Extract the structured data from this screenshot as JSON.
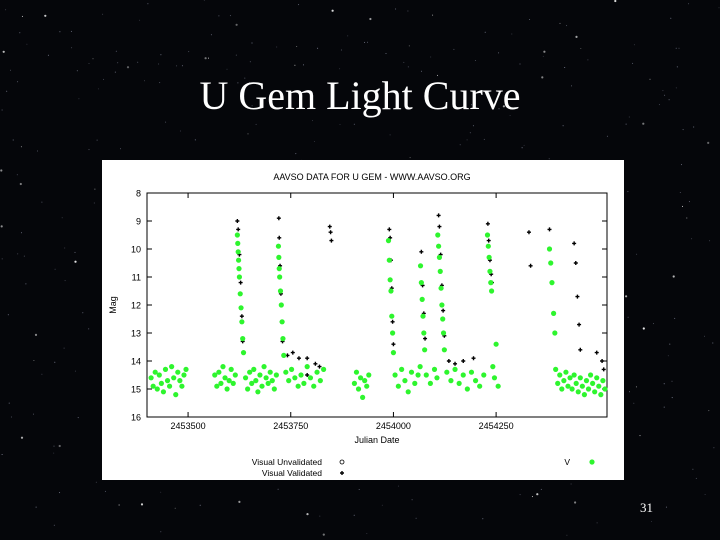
{
  "slide": {
    "title": "U Gem Light Curve",
    "page_number": "31",
    "background_color": "#05060a",
    "title_color": "#ffffff"
  },
  "chart_data": {
    "type": "scatter",
    "title": "AAVSO DATA FOR U GEM - WWW.AAVSO.ORG",
    "xlabel": "Julian Date",
    "ylabel": "Mag",
    "xlim": [
      2453400,
      2454520
    ],
    "ylim": [
      16,
      8
    ],
    "y_inverted": true,
    "x_ticks": [
      {
        "value": 2453500,
        "label": "2453500"
      },
      {
        "value": 2453750,
        "label": "2453750"
      },
      {
        "value": 2454000,
        "label": "2454000"
      },
      {
        "value": 2454250,
        "label": "2454250"
      }
    ],
    "y_ticks": [
      {
        "value": 8,
        "label": "8"
      },
      {
        "value": 9,
        "label": "9"
      },
      {
        "value": 10,
        "label": "10"
      },
      {
        "value": 11,
        "label": "11"
      },
      {
        "value": 12,
        "label": "12"
      },
      {
        "value": 13,
        "label": "13"
      },
      {
        "value": 14,
        "label": "14"
      },
      {
        "value": 15,
        "label": "15"
      },
      {
        "value": 16,
        "label": "16"
      }
    ],
    "grid": false,
    "legend_position": "bottom",
    "series": [
      {
        "name": "Visual Unvalidated",
        "marker": "open-circle",
        "color": "#000000",
        "points": []
      },
      {
        "name": "Visual Validated",
        "marker": "plus",
        "color": "#000000",
        "points": [
          [
            2453620,
            9.0
          ],
          [
            2453622,
            9.3
          ],
          [
            2453625,
            10.2
          ],
          [
            2453628,
            11.2
          ],
          [
            2453631,
            12.4
          ],
          [
            2453633,
            13.3
          ],
          [
            2453721,
            8.9
          ],
          [
            2453722,
            9.6
          ],
          [
            2453724,
            10.6
          ],
          [
            2453726,
            11.6
          ],
          [
            2453728,
            12.6
          ],
          [
            2453730,
            13.3
          ],
          [
            2453742,
            13.8
          ],
          [
            2453755,
            13.7
          ],
          [
            2453770,
            13.9
          ],
          [
            2453790,
            13.9
          ],
          [
            2453810,
            14.1
          ],
          [
            2453820,
            14.2
          ],
          [
            2453790,
            14.5
          ],
          [
            2453845,
            9.2
          ],
          [
            2453847,
            9.4
          ],
          [
            2453849,
            9.7
          ],
          [
            2453990,
            9.3
          ],
          [
            2453992,
            9.6
          ],
          [
            2453994,
            10.4
          ],
          [
            2453996,
            11.4
          ],
          [
            2453998,
            12.6
          ],
          [
            2454000,
            13.4
          ],
          [
            2454068,
            10.1
          ],
          [
            2454071,
            11.3
          ],
          [
            2454074,
            12.3
          ],
          [
            2454077,
            13.2
          ],
          [
            2454110,
            8.8
          ],
          [
            2454112,
            9.2
          ],
          [
            2454115,
            10.2
          ],
          [
            2454118,
            11.3
          ],
          [
            2454121,
            12.2
          ],
          [
            2454124,
            13.1
          ],
          [
            2454135,
            14.0
          ],
          [
            2454150,
            14.1
          ],
          [
            2454170,
            14.0
          ],
          [
            2454195,
            13.9
          ],
          [
            2454230,
            9.1
          ],
          [
            2454232,
            9.7
          ],
          [
            2454235,
            10.4
          ],
          [
            2454238,
            10.9
          ],
          [
            2454240,
            11.2
          ],
          [
            2454330,
            9.4
          ],
          [
            2454334,
            10.6
          ],
          [
            2454380,
            9.3
          ],
          [
            2454440,
            9.8
          ],
          [
            2454444,
            10.5
          ],
          [
            2454448,
            11.7
          ],
          [
            2454452,
            12.7
          ],
          [
            2454455,
            13.6
          ],
          [
            2454495,
            13.7
          ],
          [
            2454508,
            14.0
          ],
          [
            2454512,
            14.3
          ]
        ]
      },
      {
        "name": "V",
        "marker": "filled-circle",
        "color": "#2ef52e",
        "points": [
          [
            2453410,
            14.6
          ],
          [
            2453415,
            14.9
          ],
          [
            2453420,
            14.4
          ],
          [
            2453425,
            15.0
          ],
          [
            2453430,
            14.5
          ],
          [
            2453435,
            14.8
          ],
          [
            2453440,
            15.1
          ],
          [
            2453445,
            14.3
          ],
          [
            2453450,
            14.7
          ],
          [
            2453455,
            14.9
          ],
          [
            2453460,
            14.2
          ],
          [
            2453465,
            14.6
          ],
          [
            2453470,
            15.2
          ],
          [
            2453475,
            14.4
          ],
          [
            2453480,
            14.7
          ],
          [
            2453485,
            14.9
          ],
          [
            2453490,
            14.5
          ],
          [
            2453495,
            14.3
          ],
          [
            2453565,
            14.5
          ],
          [
            2453570,
            14.9
          ],
          [
            2453575,
            14.4
          ],
          [
            2453580,
            14.8
          ],
          [
            2453585,
            14.2
          ],
          [
            2453590,
            14.6
          ],
          [
            2453595,
            15.0
          ],
          [
            2453600,
            14.7
          ],
          [
            2453605,
            14.3
          ],
          [
            2453610,
            14.8
          ],
          [
            2453615,
            14.5
          ],
          [
            2453620,
            9.5
          ],
          [
            2453621,
            9.8
          ],
          [
            2453622,
            10.1
          ],
          [
            2453623,
            10.4
          ],
          [
            2453624,
            10.7
          ],
          [
            2453625,
            11.0
          ],
          [
            2453627,
            11.6
          ],
          [
            2453629,
            12.1
          ],
          [
            2453631,
            12.6
          ],
          [
            2453633,
            13.2
          ],
          [
            2453635,
            13.7
          ],
          [
            2453640,
            14.6
          ],
          [
            2453645,
            15.0
          ],
          [
            2453650,
            14.4
          ],
          [
            2453655,
            14.8
          ],
          [
            2453660,
            14.3
          ],
          [
            2453665,
            14.7
          ],
          [
            2453670,
            15.1
          ],
          [
            2453675,
            14.5
          ],
          [
            2453680,
            14.9
          ],
          [
            2453685,
            14.2
          ],
          [
            2453690,
            14.6
          ],
          [
            2453695,
            14.8
          ],
          [
            2453700,
            14.4
          ],
          [
            2453705,
            14.7
          ],
          [
            2453710,
            15.0
          ],
          [
            2453715,
            14.5
          ],
          [
            2453720,
            9.9
          ],
          [
            2453721,
            10.3
          ],
          [
            2453722,
            10.7
          ],
          [
            2453723,
            11.0
          ],
          [
            2453725,
            11.5
          ],
          [
            2453727,
            12.0
          ],
          [
            2453729,
            12.6
          ],
          [
            2453731,
            13.2
          ],
          [
            2453733,
            13.8
          ],
          [
            2453738,
            14.4
          ],
          [
            2453745,
            14.7
          ],
          [
            2453752,
            14.3
          ],
          [
            2453760,
            14.6
          ],
          [
            2453768,
            14.9
          ],
          [
            2453775,
            14.5
          ],
          [
            2453782,
            14.8
          ],
          [
            2453790,
            14.2
          ],
          [
            2453798,
            14.6
          ],
          [
            2453806,
            14.9
          ],
          [
            2453814,
            14.4
          ],
          [
            2453822,
            14.7
          ],
          [
            2453830,
            14.3
          ],
          [
            2453905,
            14.8
          ],
          [
            2453910,
            14.4
          ],
          [
            2453915,
            15.0
          ],
          [
            2453920,
            14.6
          ],
          [
            2453925,
            15.3
          ],
          [
            2453930,
            14.7
          ],
          [
            2453935,
            14.9
          ],
          [
            2453940,
            14.5
          ],
          [
            2453988,
            9.7
          ],
          [
            2453990,
            10.4
          ],
          [
            2453992,
            11.1
          ],
          [
            2453994,
            11.5
          ],
          [
            2453996,
            12.4
          ],
          [
            2453998,
            13.0
          ],
          [
            2454000,
            13.7
          ],
          [
            2454004,
            14.5
          ],
          [
            2454012,
            14.9
          ],
          [
            2454020,
            14.3
          ],
          [
            2454028,
            14.7
          ],
          [
            2454036,
            15.1
          ],
          [
            2454044,
            14.4
          ],
          [
            2454052,
            14.8
          ],
          [
            2454060,
            14.5
          ],
          [
            2454065,
            14.2
          ],
          [
            2454066,
            10.6
          ],
          [
            2454068,
            11.2
          ],
          [
            2454070,
            11.8
          ],
          [
            2454072,
            12.4
          ],
          [
            2454074,
            13.0
          ],
          [
            2454076,
            13.6
          ],
          [
            2454080,
            14.5
          ],
          [
            2454090,
            14.8
          ],
          [
            2454100,
            14.3
          ],
          [
            2454106,
            14.6
          ],
          [
            2454108,
            9.5
          ],
          [
            2454110,
            9.9
          ],
          [
            2454112,
            10.3
          ],
          [
            2454114,
            10.8
          ],
          [
            2454116,
            11.4
          ],
          [
            2454118,
            12.0
          ],
          [
            2454120,
            12.5
          ],
          [
            2454122,
            13.0
          ],
          [
            2454124,
            13.6
          ],
          [
            2454130,
            14.4
          ],
          [
            2454140,
            14.7
          ],
          [
            2454150,
            14.3
          ],
          [
            2454160,
            14.8
          ],
          [
            2454170,
            14.5
          ],
          [
            2454180,
            15.0
          ],
          [
            2454190,
            14.4
          ],
          [
            2454200,
            14.7
          ],
          [
            2454210,
            14.9
          ],
          [
            2454220,
            14.5
          ],
          [
            2454229,
            9.5
          ],
          [
            2454231,
            9.9
          ],
          [
            2454233,
            10.3
          ],
          [
            2454235,
            10.8
          ],
          [
            2454237,
            11.2
          ],
          [
            2454239,
            11.5
          ],
          [
            2454242,
            14.2
          ],
          [
            2454246,
            14.6
          ],
          [
            2454250,
            13.4
          ],
          [
            2454255,
            14.9
          ],
          [
            2454380,
            10.0
          ],
          [
            2454383,
            10.5
          ],
          [
            2454386,
            11.2
          ],
          [
            2454390,
            12.3
          ],
          [
            2454393,
            13.0
          ],
          [
            2454395,
            14.3
          ],
          [
            2454400,
            14.8
          ],
          [
            2454405,
            14.5
          ],
          [
            2454410,
            15.0
          ],
          [
            2454415,
            14.7
          ],
          [
            2454420,
            14.4
          ],
          [
            2454425,
            14.9
          ],
          [
            2454430,
            14.6
          ],
          [
            2454435,
            15.0
          ],
          [
            2454440,
            14.5
          ],
          [
            2454445,
            14.8
          ],
          [
            2454450,
            15.1
          ],
          [
            2454455,
            14.6
          ],
          [
            2454460,
            14.9
          ],
          [
            2454465,
            15.2
          ],
          [
            2454470,
            14.7
          ],
          [
            2454475,
            15.0
          ],
          [
            2454480,
            14.5
          ],
          [
            2454485,
            14.8
          ],
          [
            2454490,
            15.1
          ],
          [
            2454495,
            14.6
          ],
          [
            2454500,
            14.9
          ],
          [
            2454505,
            15.2
          ],
          [
            2454510,
            14.7
          ],
          [
            2454515,
            15.0
          ]
        ]
      }
    ]
  }
}
